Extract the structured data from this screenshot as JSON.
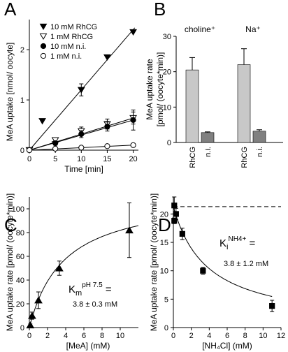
{
  "chart_data": [
    {
      "panel": "A",
      "type": "line",
      "xlabel": "Time [min]",
      "ylabel": "MeA uptake [nmol/ oocyte]",
      "xlim": [
        0,
        21
      ],
      "ylim": [
        0,
        2.6
      ],
      "xticks": [
        "0",
        "5",
        "10",
        "15",
        "20"
      ],
      "yticks": [
        "0",
        "1",
        "2"
      ],
      "legend_position": "top-left",
      "series": [
        {
          "name": "10 mM RhCG",
          "marker": "triangle-down-filled",
          "x": [
            0,
            2.5,
            5,
            10,
            15,
            20
          ],
          "y": [
            0,
            0.58,
            0.12,
            1.2,
            1.85,
            2.35
          ],
          "err": [
            0,
            0,
            0,
            0.12,
            0,
            0
          ],
          "fit_slope": 0.12
        },
        {
          "name": "1 mM RhCG",
          "marker": "triangle-down-open",
          "x": [
            0,
            5,
            10,
            15,
            20
          ],
          "y": [
            0,
            0.2,
            0.38,
            0.52,
            0.64
          ],
          "err": [
            0,
            0.05,
            0.08,
            0.1,
            0.12
          ],
          "fit_slope": 0.032
        },
        {
          "name": "10 mM n.i.",
          "marker": "circle-filled",
          "x": [
            0,
            5,
            10,
            15,
            20
          ],
          "y": [
            0,
            0.14,
            0.32,
            0.47,
            0.6
          ],
          "err": [
            0,
            0.04,
            0.07,
            0.09,
            0.2
          ],
          "fit_slope": 0.03
        },
        {
          "name": "1 mM n.i.",
          "marker": "circle-open",
          "x": [
            0,
            5,
            10,
            15,
            20
          ],
          "y": [
            0,
            0.03,
            0.05,
            0.08,
            0.1
          ],
          "err": [
            0,
            0,
            0,
            0.03,
            0
          ],
          "fit_slope": 0.005
        }
      ]
    },
    {
      "panel": "B",
      "type": "bar",
      "ylabel": "MeA uptake rate\n[pmol/ (oocyte*min)]",
      "ylim": [
        0,
        30
      ],
      "yticks": [
        "0",
        "10",
        "20",
        "30"
      ],
      "group_labels": [
        "choline⁺",
        "Na⁺"
      ],
      "categories": [
        "RhCG",
        "n.i.",
        "RhCG",
        "n.i."
      ],
      "values": [
        20.5,
        2.8,
        22.0,
        3.2
      ],
      "errors": [
        3.5,
        0.2,
        4.5,
        0.4
      ],
      "colors": [
        "#c8c8c8",
        "#808080",
        "#c8c8c8",
        "#808080"
      ]
    },
    {
      "panel": "C",
      "type": "scatter",
      "xlabel": "[MeA] (mM)",
      "ylabel": "MeA uptake rate [pmol/ (oocyte*min)]",
      "xlim": [
        0,
        12
      ],
      "ylim": [
        0,
        110
      ],
      "xticks": [
        "0",
        "2",
        "4",
        "6",
        "8",
        "10"
      ],
      "yticks": [
        "0",
        "20",
        "40",
        "60",
        "80",
        "100"
      ],
      "points": {
        "x": [
          0.1,
          0.3,
          1.0,
          3.3,
          11.0
        ],
        "y": [
          2,
          10,
          23,
          50,
          82
        ],
        "err": [
          1,
          3,
          7,
          6,
          23
        ]
      },
      "fit": {
        "model": "michaelis-menten",
        "vmax": 113,
        "km": 3.8
      },
      "annotation": {
        "label": "K",
        "sub": "m",
        "sup": "pH 7.5",
        "eq": " =",
        "value": "3.8 ± 0.3 mM"
      }
    },
    {
      "panel": "D",
      "type": "scatter",
      "xlabel": "[NH₄Cl] (mM)",
      "ylabel": "MeA uptake rate [pmol/ (oocyte*min)]",
      "xlim": [
        0,
        12
      ],
      "ylim": [
        0,
        23
      ],
      "xticks": [
        "0",
        "2",
        "4",
        "6",
        "8",
        "10",
        "12"
      ],
      "yticks": [
        "0",
        "5",
        "10",
        "15",
        "20"
      ],
      "points": {
        "x": [
          0.1,
          0.1,
          0.3,
          1.0,
          3.3,
          11.0
        ],
        "y": [
          21.5,
          18.8,
          20.0,
          16.5,
          10.0,
          3.8
        ],
        "err": [
          1.5,
          0.5,
          1.0,
          1.0,
          0.6,
          1.0
        ]
      },
      "reference_line": 21.3,
      "fit": {
        "model": "inhibition",
        "vmax": 21.3,
        "ki": 3.8
      },
      "annotation": {
        "label": "K",
        "sub": "i",
        "sup": "NH4+",
        "eq": " =",
        "value": "3.8 ± 1.2 mM"
      }
    }
  ]
}
